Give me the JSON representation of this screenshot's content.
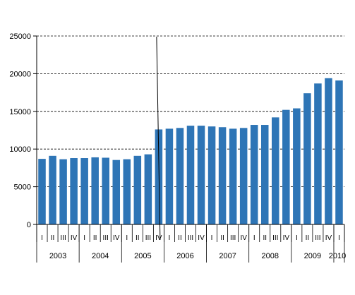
{
  "chart_data": {
    "type": "bar",
    "title": "",
    "xlabel": "",
    "ylabel": "",
    "ylim": [
      0,
      25000
    ],
    "yticks": [
      0,
      5000,
      10000,
      15000,
      20000,
      25000
    ],
    "ytick_labels": [
      "0",
      "5000",
      "10000",
      "15000",
      "20000",
      "25000"
    ],
    "grid": "horizontal dashed at 5000-step ticks",
    "bar_color": "#2e75b6",
    "break_line": "vertical line between 2005 Q4 and 2006 Q1",
    "categories": [
      "2003 I",
      "2003 II",
      "2003 III",
      "2003 IV",
      "2004 I",
      "2004 II",
      "2004 III",
      "2004 IV",
      "2005 I",
      "2005 II",
      "2005 III",
      "2005 IV",
      "2006 I",
      "2006 II",
      "2006 III",
      "2006 IV",
      "2007 I",
      "2007 II",
      "2007 III",
      "2007 IV",
      "2008 I",
      "2008 II",
      "2008 III",
      "2008 IV",
      "2009 I",
      "2009 II",
      "2009 III",
      "2009 IV",
      "2010 I"
    ],
    "quarter_labels": [
      "I",
      "II",
      "III",
      "IV",
      "I",
      "II",
      "III",
      "IV",
      "I",
      "II",
      "III",
      "IV",
      "I",
      "II",
      "III",
      "IV",
      "I",
      "II",
      "III",
      "IV",
      "I",
      "II",
      "III",
      "IV",
      "I",
      "II",
      "III",
      "IV",
      "I"
    ],
    "years": [
      {
        "label": "2003",
        "quarters": 4
      },
      {
        "label": "2004",
        "quarters": 4
      },
      {
        "label": "2005",
        "quarters": 4
      },
      {
        "label": "2006",
        "quarters": 4
      },
      {
        "label": "2007",
        "quarters": 4
      },
      {
        "label": "2008",
        "quarters": 4
      },
      {
        "label": "2009",
        "quarters": 4
      },
      {
        "label": "2010",
        "quarters": 1
      }
    ],
    "values": [
      8700,
      9100,
      8650,
      8800,
      8800,
      8900,
      8850,
      8550,
      8650,
      9100,
      9300,
      12600,
      12700,
      12800,
      13100,
      13100,
      13000,
      12900,
      12700,
      12800,
      13200,
      13200,
      14200,
      15200,
      15400,
      17400,
      18700,
      19400,
      19100
    ]
  }
}
